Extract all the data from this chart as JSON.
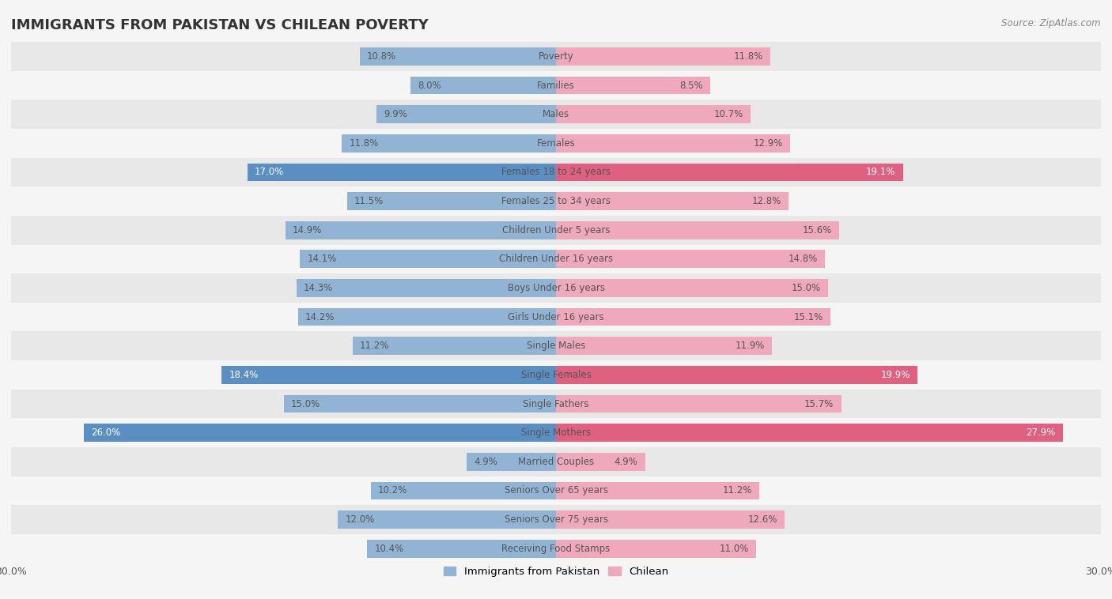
{
  "title": "IMMIGRANTS FROM PAKISTAN VS CHILEAN POVERTY",
  "source": "Source: ZipAtlas.com",
  "categories": [
    "Poverty",
    "Families",
    "Males",
    "Females",
    "Females 18 to 24 years",
    "Females 25 to 34 years",
    "Children Under 5 years",
    "Children Under 16 years",
    "Boys Under 16 years",
    "Girls Under 16 years",
    "Single Males",
    "Single Females",
    "Single Fathers",
    "Single Mothers",
    "Married Couples",
    "Seniors Over 65 years",
    "Seniors Over 75 years",
    "Receiving Food Stamps"
  ],
  "pakistan_values": [
    10.8,
    8.0,
    9.9,
    11.8,
    17.0,
    11.5,
    14.9,
    14.1,
    14.3,
    14.2,
    11.2,
    18.4,
    15.0,
    26.0,
    4.9,
    10.2,
    12.0,
    10.4
  ],
  "chilean_values": [
    11.8,
    8.5,
    10.7,
    12.9,
    19.1,
    12.8,
    15.6,
    14.8,
    15.0,
    15.1,
    11.9,
    19.9,
    15.7,
    27.9,
    4.9,
    11.2,
    12.6,
    11.0
  ],
  "pakistan_color": "#92b4d4",
  "chilean_color": "#f0a8bc",
  "pakistan_highlight_color": "#5b8fc4",
  "chilean_highlight_color": "#e06080",
  "highlight_rows": [
    4,
    11,
    13
  ],
  "xlim": 30.0,
  "bar_height": 0.62,
  "background_color": "#f5f5f5",
  "row_even_color": "#e8e8e8",
  "row_odd_color": "#f5f5f5",
  "legend_pakistan": "Immigrants from Pakistan",
  "legend_chilean": "Chilean",
  "title_fontsize": 13,
  "label_fontsize": 8.5,
  "value_fontsize": 8.5,
  "axis_tick_fontsize": 9.0,
  "text_color": "#555555",
  "highlight_text_color": "#ffffff"
}
